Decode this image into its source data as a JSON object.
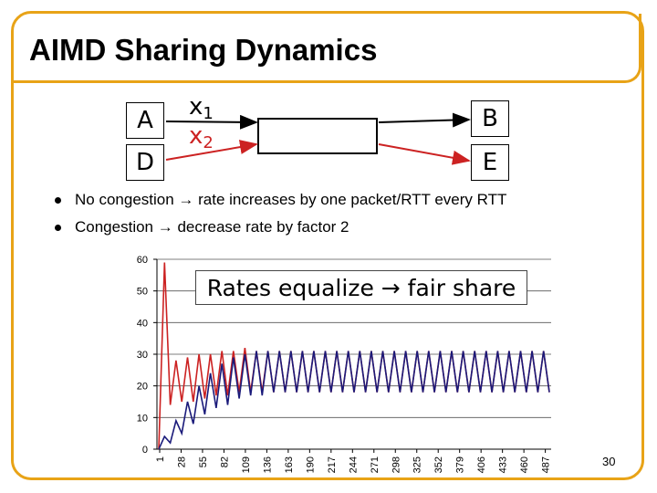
{
  "title": "AIMD Sharing Dynamics",
  "diagram": {
    "nodes": {
      "a": "A",
      "d": "D",
      "b": "B",
      "e": "E"
    },
    "flow1": {
      "base": "x",
      "sub": "1"
    },
    "flow2": {
      "base": "x",
      "sub": "2"
    },
    "flow_colors": {
      "flow1": "#000000",
      "flow2": "#cc2222"
    }
  },
  "bullets": [
    "No congestion → rate increases by one packet/RTT every RTT",
    "Congestion → decrease rate by factor 2"
  ],
  "callout": "Rates equalize → fair share",
  "page_number": "30",
  "chart_data": {
    "type": "line",
    "title": "",
    "xlabel": "",
    "ylabel": "",
    "ylim": [
      0,
      60
    ],
    "yticks": [
      0,
      10,
      20,
      30,
      40,
      50,
      60
    ],
    "xticks": [
      1,
      28,
      55,
      82,
      109,
      136,
      163,
      190,
      217,
      244,
      271,
      298,
      325,
      352,
      379,
      406,
      433,
      460,
      487
    ],
    "grid": "horizontal",
    "series": [
      {
        "color": "#cc2222",
        "values": [
          0,
          59,
          14,
          28,
          15,
          29,
          15,
          30,
          16,
          30,
          17,
          31,
          17,
          31,
          18,
          32,
          18,
          31,
          18,
          31,
          18,
          31,
          18,
          31,
          18,
          31,
          18,
          31,
          18,
          31,
          18,
          31,
          18,
          31,
          18,
          31,
          18,
          31,
          18,
          31,
          18,
          31,
          18,
          31,
          18,
          31,
          18,
          31,
          18,
          31,
          18,
          31,
          18,
          31,
          18,
          31,
          18,
          31,
          18,
          31,
          18,
          31,
          18,
          31,
          18,
          31,
          18,
          31,
          18
        ]
      },
      {
        "color": "#1a1a7a",
        "values": [
          0,
          4,
          2,
          9,
          5,
          15,
          8,
          20,
          11,
          24,
          13,
          27,
          14,
          29,
          16,
          30,
          17,
          31,
          17,
          31,
          18,
          31,
          18,
          31,
          18,
          31,
          18,
          31,
          18,
          31,
          18,
          31,
          18,
          31,
          18,
          31,
          18,
          31,
          18,
          31,
          18,
          31,
          18,
          31,
          18,
          31,
          18,
          31,
          18,
          31,
          18,
          31,
          18,
          31,
          18,
          31,
          18,
          31,
          18,
          31,
          18,
          31,
          18,
          31,
          18,
          31,
          18,
          31,
          18
        ]
      }
    ]
  }
}
